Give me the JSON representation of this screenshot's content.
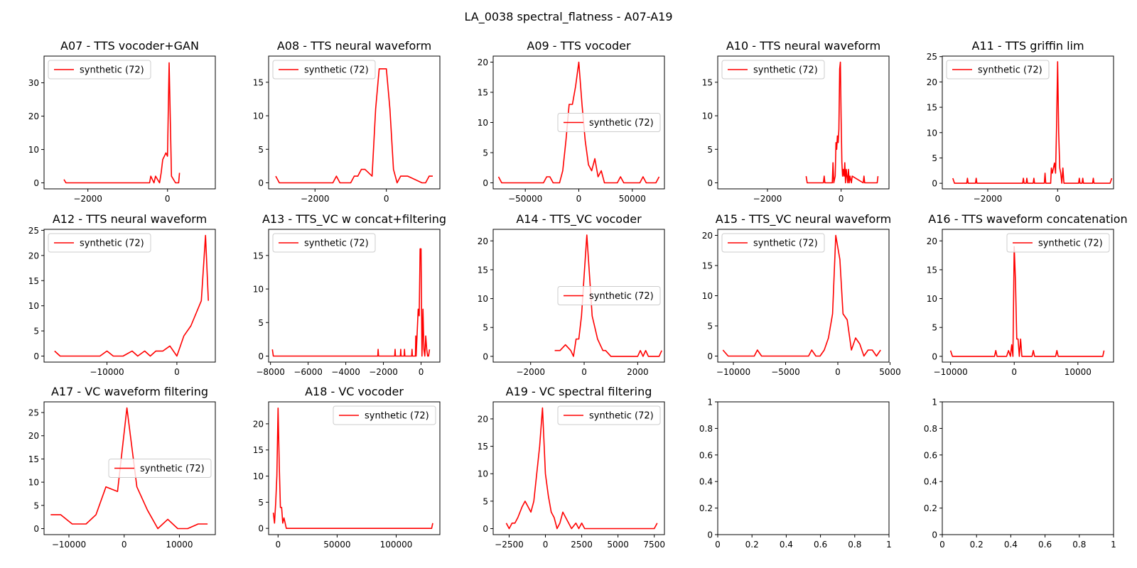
{
  "figure": {
    "title": "LA_0038 spectral_flatness - A07-A19"
  },
  "chart_data": [
    {
      "type": "line",
      "title": "A07 - TTS vocoder+GAN",
      "xlim": [
        -3100,
        1200
      ],
      "ylim": [
        -1.8,
        38
      ],
      "xticks": [
        -2000,
        0
      ],
      "yticks": [
        0,
        10,
        20,
        30
      ],
      "legend": "top-left",
      "series": [
        {
          "name": "synthetic (72)",
          "color": "#ff0000",
          "x": [
            -2600,
            -2550,
            -450,
            -420,
            -380,
            -340,
            -300,
            -250,
            -200,
            -160,
            -120,
            -80,
            -40,
            0,
            40,
            100,
            200,
            280,
            300
          ],
          "y": [
            1,
            0,
            0,
            2,
            1,
            0,
            2,
            1,
            0,
            3,
            7,
            8,
            9,
            8,
            36,
            2,
            0,
            0,
            3
          ]
        }
      ]
    },
    {
      "type": "line",
      "title": "A08 - TTS neural waveform",
      "xlim": [
        -3300,
        1500
      ],
      "ylim": [
        -0.9,
        18.9
      ],
      "xticks": [
        -2000,
        0
      ],
      "yticks": [
        0,
        5,
        10,
        15
      ],
      "legend": "top-left",
      "series": [
        {
          "name": "synthetic (72)",
          "color": "#ff0000",
          "x": [
            -3100,
            -3000,
            -1500,
            -1400,
            -1300,
            -1000,
            -900,
            -800,
            -700,
            -600,
            -400,
            -300,
            -200,
            -100,
            0,
            100,
            200,
            300,
            400,
            500,
            600,
            1000,
            1100,
            1200,
            1300
          ],
          "y": [
            1,
            0,
            0,
            1,
            0,
            0,
            1,
            1,
            2,
            2,
            1,
            11,
            17,
            17,
            17,
            11,
            2,
            0,
            1,
            1,
            1,
            0,
            0,
            1,
            1
          ]
        }
      ]
    },
    {
      "type": "line",
      "title": "A09 - TTS vocoder",
      "xlim": [
        -80000,
        80000
      ],
      "ylim": [
        -1,
        21
      ],
      "xticks": [
        -50000,
        0,
        50000
      ],
      "yticks": [
        0,
        5,
        10,
        15,
        20
      ],
      "legend": "center-right",
      "series": [
        {
          "name": "synthetic (72)",
          "color": "#ff0000",
          "x": [
            -75000,
            -72000,
            -33000,
            -30000,
            -27000,
            -24000,
            -18000,
            -15000,
            -12000,
            -9000,
            -6000,
            -3000,
            0,
            3000,
            6000,
            9000,
            12000,
            15000,
            18000,
            21000,
            24000,
            36000,
            39000,
            42000,
            57000,
            60000,
            63000,
            72000,
            75000
          ],
          "y": [
            1,
            0,
            0,
            1,
            1,
            0,
            0,
            2,
            7,
            13,
            13,
            16,
            20,
            13,
            7,
            3,
            2,
            4,
            1,
            2,
            0,
            0,
            1,
            0,
            0,
            1,
            0,
            0,
            1
          ]
        }
      ]
    },
    {
      "type": "line",
      "title": "A10 - TTS neural waveform",
      "xlim": [
        -3350,
        1300
      ],
      "ylim": [
        -0.9,
        18.9
      ],
      "xticks": [
        -2000,
        0
      ],
      "yticks": [
        0,
        5,
        10,
        15
      ],
      "legend": "top-left",
      "series": [
        {
          "name": "synthetic (72)",
          "color": "#ff0000",
          "x": [
            -950,
            -920,
            -480,
            -460,
            -440,
            -240,
            -220,
            -200,
            -160,
            -140,
            -120,
            -100,
            -80,
            -60,
            -40,
            -20,
            0,
            20,
            40,
            60,
            80,
            100,
            120,
            140,
            160,
            180,
            200,
            220,
            240,
            280,
            300,
            600,
            620,
            640,
            980,
            1000
          ],
          "y": [
            1,
            0,
            0,
            1,
            0,
            0,
            3,
            0,
            1,
            6,
            5,
            7,
            6,
            8,
            17,
            18,
            10,
            3,
            1,
            2,
            1,
            3,
            0,
            2,
            1,
            0,
            2,
            0,
            1,
            0,
            1,
            0,
            1,
            0,
            0,
            1
          ]
        }
      ]
    },
    {
      "type": "line",
      "title": "A11 - TTS griffin lim",
      "xlim": [
        -3300,
        1600
      ],
      "ylim": [
        -1.1,
        25.1
      ],
      "xticks": [
        -2000,
        0
      ],
      "yticks": [
        0,
        5,
        10,
        15,
        20,
        25
      ],
      "legend": "top-left",
      "series": [
        {
          "name": "synthetic (72)",
          "color": "#ff0000",
          "x": [
            -3000,
            -2950,
            -2600,
            -2580,
            -2560,
            -2350,
            -2330,
            -2310,
            -1000,
            -980,
            -960,
            -900,
            -880,
            -860,
            -700,
            -680,
            -660,
            -380,
            -360,
            -340,
            -200,
            -180,
            -150,
            -120,
            -90,
            -60,
            -30,
            0,
            30,
            60,
            90,
            120,
            150,
            180,
            600,
            620,
            640,
            700,
            720,
            740,
            1000,
            1020,
            1040,
            1500,
            1550
          ],
          "y": [
            1,
            0,
            0,
            1,
            0,
            0,
            1,
            0,
            0,
            1,
            0,
            0,
            1,
            0,
            0,
            1,
            0,
            0,
            2,
            0,
            0,
            3,
            2,
            3,
            4,
            2,
            11,
            24,
            10,
            3,
            2,
            0,
            3,
            0,
            0,
            1,
            0,
            0,
            1,
            0,
            0,
            1,
            0,
            0,
            1
          ]
        }
      ]
    },
    {
      "type": "line",
      "title": "A12 - TTS neural waveform",
      "xlim": [
        -19000,
        5500
      ],
      "ylim": [
        -1.2,
        25.2
      ],
      "xticks": [
        -10000,
        0
      ],
      "yticks": [
        0,
        5,
        10,
        15,
        20,
        25
      ],
      "legend": "top-left",
      "series": [
        {
          "name": "synthetic (72)",
          "color": "#ff0000",
          "x": [
            -17500,
            -16700,
            -11000,
            -10000,
            -9100,
            -7700,
            -6400,
            -5600,
            -4600,
            -3800,
            -3000,
            -2000,
            -1000,
            0,
            1000,
            2000,
            3500,
            4100,
            4500
          ],
          "y": [
            1,
            0,
            0,
            1,
            0,
            0,
            1,
            0,
            1,
            0,
            1,
            1,
            2,
            0,
            4,
            6,
            11,
            24,
            11
          ]
        }
      ]
    },
    {
      "type": "line",
      "title": "A13 - TTS_VC w concat+filtering",
      "xlim": [
        -8100,
        1000
      ],
      "ylim": [
        -0.9,
        18.9
      ],
      "xticks": [
        -8000,
        -6000,
        -4000,
        -2000,
        0
      ],
      "yticks": [
        0,
        5,
        10,
        15
      ],
      "legend": "top-left",
      "series": [
        {
          "name": "synthetic (72)",
          "color": "#ff0000",
          "x": [
            -7900,
            -7850,
            -2300,
            -2280,
            -2260,
            -1400,
            -1380,
            -1360,
            -1100,
            -1080,
            -1060,
            -900,
            -880,
            -860,
            -500,
            -480,
            -460,
            -300,
            -280,
            -260,
            -150,
            -100,
            -50,
            0,
            50,
            100,
            150,
            200,
            250,
            300,
            350,
            400,
            450
          ],
          "y": [
            1,
            0,
            0,
            1,
            0,
            0,
            1,
            0,
            0,
            1,
            0,
            0,
            1,
            0,
            0,
            1,
            0,
            0,
            3,
            0,
            7,
            6,
            16,
            16,
            0,
            7,
            1,
            0,
            3,
            1,
            0,
            0,
            1
          ]
        }
      ]
    },
    {
      "type": "line",
      "title": "A14 - TTS_VC vocoder",
      "xlim": [
        -3400,
        3000
      ],
      "ylim": [
        -1,
        22
      ],
      "xticks": [
        -2000,
        0,
        2000
      ],
      "yticks": [
        0,
        5,
        10,
        15,
        20
      ],
      "legend": "center-right",
      "series": [
        {
          "name": "synthetic (72)",
          "color": "#ff0000",
          "x": [
            -1100,
            -900,
            -700,
            -500,
            -400,
            -300,
            -200,
            -100,
            0,
            100,
            200,
            300,
            400,
            500,
            600,
            700,
            800,
            1000,
            2000,
            2100,
            2200,
            2300,
            2400,
            2500,
            2800,
            2900
          ],
          "y": [
            1,
            1,
            2,
            1,
            0,
            3,
            3,
            7,
            14,
            21,
            14,
            7,
            5,
            3,
            2,
            1,
            1,
            0,
            0,
            1,
            0,
            1,
            0,
            0,
            0,
            1
          ]
        }
      ]
    },
    {
      "type": "line",
      "title": "A15 - TTS_VC neural waveform",
      "xlim": [
        -11500,
        4900
      ],
      "ylim": [
        -1,
        21
      ],
      "xticks": [
        -10000,
        -5000,
        0,
        5000
      ],
      "yticks": [
        0,
        5,
        10,
        15,
        20
      ],
      "legend": "top-left",
      "series": [
        {
          "name": "synthetic (72)",
          "color": "#ff0000",
          "x": [
            -11000,
            -10500,
            -8000,
            -7700,
            -7300,
            -2800,
            -2500,
            -2100,
            -1700,
            -1300,
            -900,
            -500,
            -200,
            200,
            500,
            900,
            1300,
            1700,
            2100,
            2500,
            2900,
            3300,
            3700,
            4100
          ],
          "y": [
            1,
            0,
            0,
            1,
            0,
            0,
            1,
            0,
            0,
            1,
            3,
            7,
            20,
            16,
            7,
            6,
            1,
            3,
            2,
            0,
            1,
            1,
            0,
            1
          ]
        }
      ]
    },
    {
      "type": "line",
      "title": "A16 - TTS waveform concatenation",
      "xlim": [
        -11300,
        15600
      ],
      "ylim": [
        -1,
        22
      ],
      "xticks": [
        -10000,
        0,
        10000
      ],
      "yticks": [
        0,
        5,
        10,
        15,
        20
      ],
      "legend": "top-right",
      "series": [
        {
          "name": "synthetic (72)",
          "color": "#ff0000",
          "x": [
            -10000,
            -9700,
            -3100,
            -2900,
            -2700,
            -1200,
            -900,
            -600,
            -400,
            -200,
            0,
            200,
            400,
            600,
            800,
            1000,
            1200,
            2800,
            3000,
            3200,
            6500,
            6700,
            6900,
            13900,
            14100
          ],
          "y": [
            1,
            0,
            0,
            1,
            0,
            0,
            1,
            0,
            2,
            0,
            19,
            13,
            3,
            3,
            0,
            3,
            0,
            0,
            1,
            0,
            0,
            1,
            0,
            0,
            1
          ]
        }
      ]
    },
    {
      "type": "line",
      "title": "A17 - VC waveform filtering",
      "xlim": [
        -14500,
        16500
      ],
      "ylim": [
        -1.3,
        27.3
      ],
      "xticks": [
        -10000,
        0,
        10000
      ],
      "yticks": [
        0,
        5,
        10,
        15,
        20,
        25
      ],
      "legend": "center-right",
      "series": [
        {
          "name": "synthetic (72)",
          "color": "#ff0000",
          "x": [
            -13300,
            -11500,
            -9400,
            -6900,
            -5100,
            -3300,
            -1200,
            500,
            2300,
            4200,
            6100,
            7900,
            9700,
            11500,
            13400,
            15100
          ],
          "y": [
            3,
            3,
            1,
            1,
            3,
            9,
            8,
            26,
            9,
            4,
            0,
            2,
            0,
            0,
            1,
            1
          ]
        }
      ]
    },
    {
      "type": "line",
      "title": "A18 - VC vocoder",
      "xlim": [
        -8000,
        137000
      ],
      "ylim": [
        -1.2,
        24.2
      ],
      "xticks": [
        0,
        50000,
        100000
      ],
      "yticks": [
        0,
        5,
        10,
        15,
        20
      ],
      "legend": "top-right",
      "series": [
        {
          "name": "synthetic (72)",
          "color": "#ff0000",
          "x": [
            -4000,
            -3000,
            -2000,
            -1000,
            0,
            1000,
            2000,
            3000,
            4000,
            5000,
            6000,
            7000,
            130000,
            131000
          ],
          "y": [
            3,
            1,
            5,
            10,
            23,
            12,
            4,
            4,
            1,
            2,
            1,
            0,
            0,
            1
          ]
        }
      ]
    },
    {
      "type": "line",
      "title": "A19 - VC spectral filtering",
      "xlim": [
        -3600,
        8200
      ],
      "ylim": [
        -1.1,
        23.1
      ],
      "xticks": [
        -2500,
        0,
        2500,
        5000,
        7500
      ],
      "yticks": [
        0,
        5,
        10,
        15,
        20
      ],
      "legend": "top-right",
      "series": [
        {
          "name": "synthetic (72)",
          "color": "#ff0000",
          "x": [
            -2700,
            -2500,
            -2300,
            -2100,
            -1900,
            -1600,
            -1400,
            -1000,
            -800,
            -600,
            -400,
            -200,
            0,
            200,
            400,
            600,
            800,
            1000,
            1200,
            1400,
            1600,
            1800,
            2100,
            2300,
            2500,
            2700,
            2900,
            3100,
            3300,
            3500,
            7500,
            7700
          ],
          "y": [
            1,
            0,
            1,
            1,
            2,
            4,
            5,
            3,
            5,
            10,
            15,
            22,
            10,
            6,
            3,
            2,
            0,
            1,
            3,
            2,
            1,
            0,
            1,
            0,
            1,
            0,
            0,
            0,
            0,
            0,
            0,
            1
          ]
        }
      ]
    },
    {
      "type": "line",
      "title": "",
      "xlim": [
        0,
        1
      ],
      "ylim": [
        0,
        1
      ],
      "xticks": [
        0,
        0.2,
        0.4,
        0.6,
        0.8,
        1.0
      ],
      "yticks": [
        0,
        0.2,
        0.4,
        0.6,
        0.8,
        1.0
      ],
      "series": []
    },
    {
      "type": "line",
      "title": "",
      "xlim": [
        0,
        1
      ],
      "ylim": [
        0,
        1
      ],
      "xticks": [
        0,
        0.2,
        0.4,
        0.6,
        0.8,
        1.0
      ],
      "yticks": [
        0,
        0.2,
        0.4,
        0.6,
        0.8,
        1.0
      ],
      "series": []
    }
  ]
}
